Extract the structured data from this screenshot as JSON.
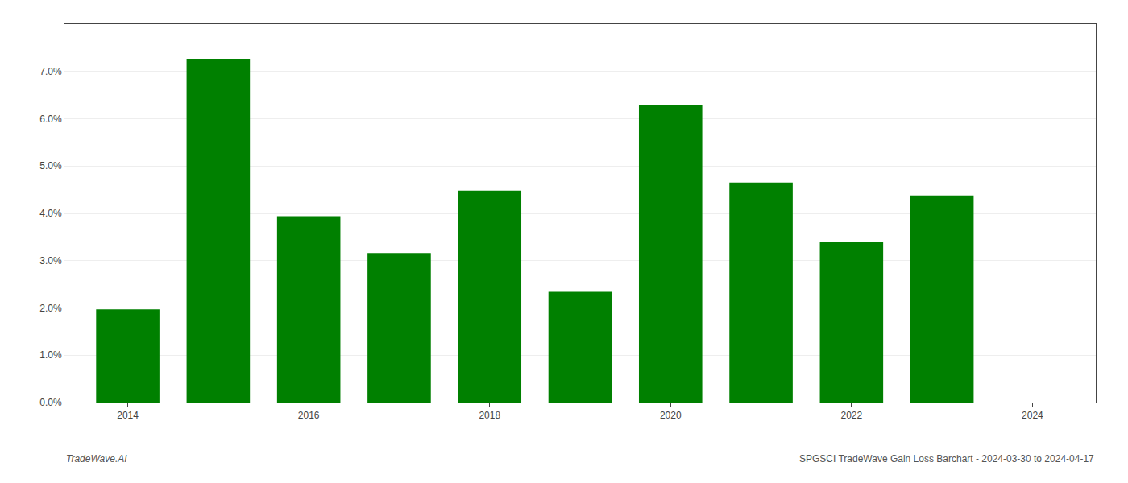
{
  "chart_data": {
    "type": "bar",
    "x": [
      2014,
      2015,
      2016,
      2017,
      2018,
      2019,
      2020,
      2021,
      2022,
      2023
    ],
    "values": [
      0.0197,
      0.0727,
      0.0394,
      0.0316,
      0.0448,
      0.0234,
      0.0628,
      0.0465,
      0.034,
      0.0438
    ],
    "color": "#008000",
    "xlim": [
      2013.3,
      2024.7
    ],
    "xticks": [
      2014,
      2016,
      2018,
      2020,
      2022,
      2024
    ],
    "ylim": [
      0.0,
      0.08
    ],
    "yticks": [
      {
        "value": 0.0,
        "label": "0.0%"
      },
      {
        "value": 0.01,
        "label": "1.0%"
      },
      {
        "value": 0.02,
        "label": "2.0%"
      },
      {
        "value": 0.03,
        "label": "3.0%"
      },
      {
        "value": 0.04,
        "label": "4.0%"
      },
      {
        "value": 0.05,
        "label": "5.0%"
      },
      {
        "value": 0.06,
        "label": "6.0%"
      },
      {
        "value": 0.07,
        "label": "7.0%"
      }
    ],
    "grid": true,
    "annotations": [
      {
        "text": "TradeWave.AI"
      },
      {
        "text": "SPGSCI TradeWave Gain Loss Barchart - 2024-03-30 to 2024-04-17"
      }
    ]
  }
}
